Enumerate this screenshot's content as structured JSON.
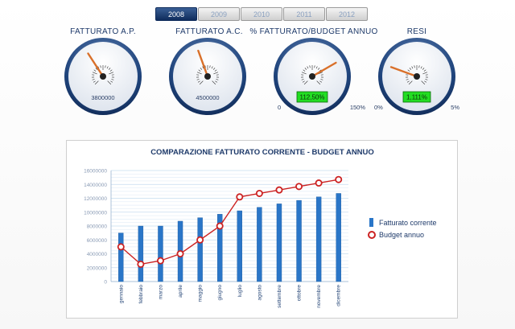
{
  "tabs": [
    "2008",
    "2009",
    "2010",
    "2011",
    "2012"
  ],
  "active_tab": "2008",
  "gauges": {
    "g1": {
      "title": "FATTURATO A.P.",
      "value_text": "3800000",
      "needle_angle": -33
    },
    "g2": {
      "title": "FATTURATO A.C.",
      "value_text": "4500000",
      "needle_angle": -20
    },
    "g3": {
      "title": "% FATTURATO/BUDGET ANNUO",
      "readout": "112,50%",
      "min_label": "0",
      "max_label": "150%",
      "needle_angle": 60
    },
    "g4": {
      "title": "RESI",
      "readout": "1,111%",
      "min_label": "0%",
      "max_label": "5%",
      "needle_angle": -70
    }
  },
  "colors": {
    "accent": "#1e3a6a",
    "bar": "#2a76c8",
    "line": "#cc2222",
    "readout_bg": "#22dd22"
  },
  "chart_data": {
    "type": "bar",
    "title": "COMPARAZIONE FATTURATO CORRENTE - BUDGET ANNUO",
    "categories": [
      "gennaio",
      "febbraio",
      "marzo",
      "aprile",
      "maggio",
      "giugno",
      "luglio",
      "agosto",
      "settembre",
      "ottobre",
      "novembre",
      "dicembre"
    ],
    "ylim": [
      0,
      16000000
    ],
    "yticks": [
      "0",
      "2000000",
      "4000000",
      "6000000",
      "8000000",
      "10000000",
      "12000000",
      "14000000",
      "16000000"
    ],
    "series": [
      {
        "name": "Fatturato corrente",
        "type": "bar",
        "values": [
          7000000,
          8000000,
          8000000,
          8700000,
          9200000,
          9700000,
          10200000,
          10700000,
          11200000,
          11700000,
          12200000,
          12700000
        ]
      },
      {
        "name": "Budget annuo",
        "type": "line",
        "values": [
          5000000,
          2500000,
          3000000,
          4000000,
          6000000,
          8000000,
          12200000,
          12700000,
          13200000,
          13700000,
          14200000,
          14700000
        ]
      }
    ],
    "grid": true,
    "legend": "right"
  }
}
